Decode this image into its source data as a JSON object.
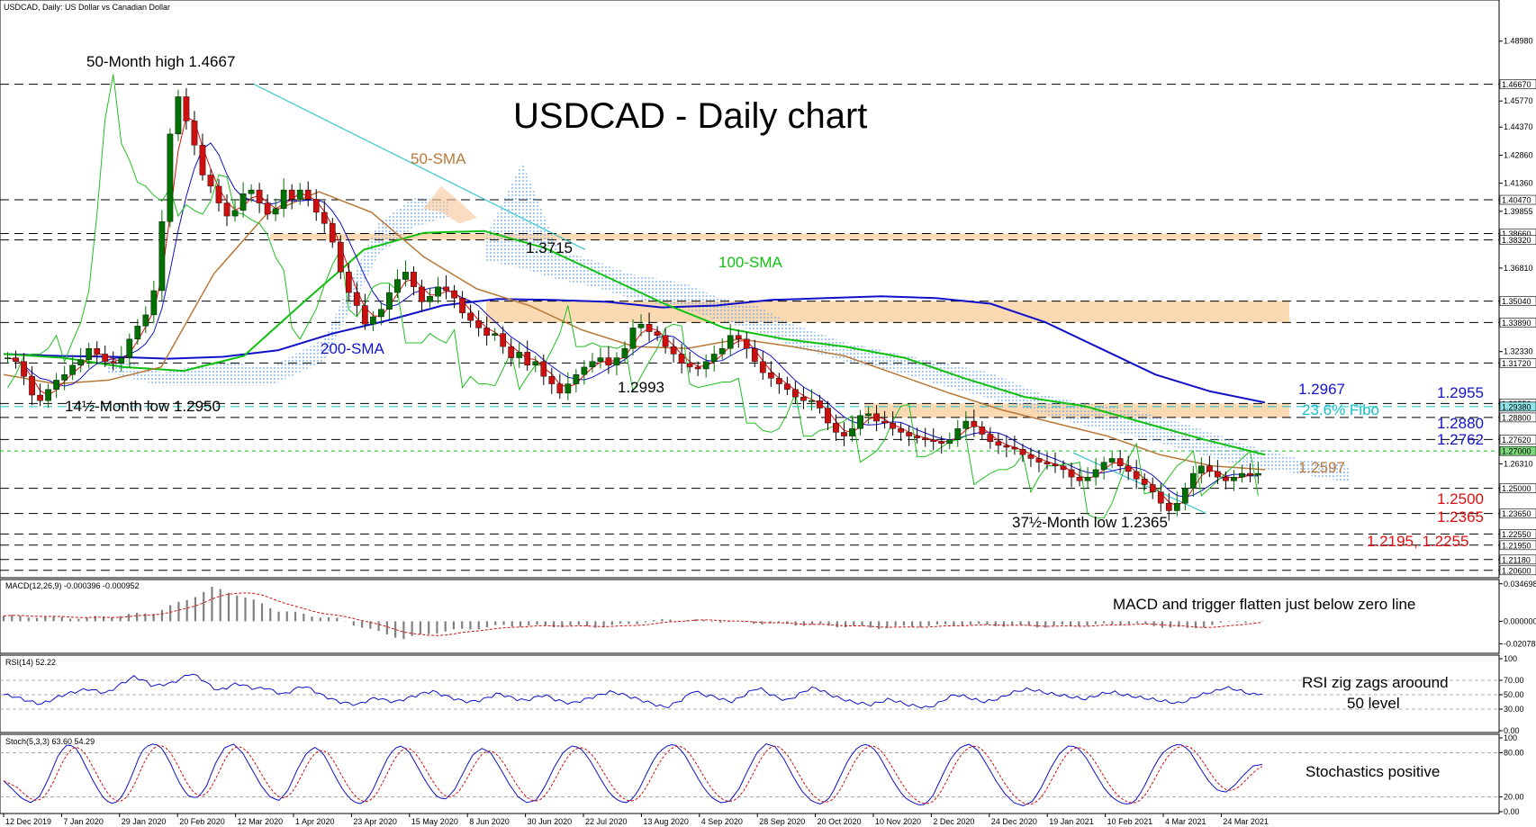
{
  "header": {
    "symbol_line": "USDCAD, Daily:  US Dollar vs Canadian Dollar",
    "title": "USDCAD - Daily chart"
  },
  "chart_data": {
    "type": "candlestick",
    "title": "USDCAD - Daily chart",
    "price_axis": {
      "ylim": [
        1.203,
        1.508
      ],
      "ticks": [
        "1.48980",
        "1.45770",
        "1.44370",
        "1.42860",
        "1.41360",
        "1.39855",
        "1.36810",
        "1.32330",
        "1.26310"
      ]
    },
    "time_axis": {
      "labels": [
        "12 Dec 2019",
        "7 Jan 2020",
        "29 Jan 2020",
        "20 Feb 2020",
        "12 Mar 2020",
        "1 Apr 2020",
        "23 Apr 2020",
        "15 May 2020",
        "8 Jun 2020",
        "30 Jun 2020",
        "22 Jul 2020",
        "13 Aug 2020",
        "4 Sep 2020",
        "28 Sep 2020",
        "20 Oct 2020",
        "10 Nov 2020",
        "2 Dec 2020",
        "24 Dec 2020",
        "19 Jan 2021",
        "10 Feb 2021",
        "4 Mar 2021",
        "24 Mar 2021"
      ]
    },
    "levels": [
      {
        "value": 1.4667,
        "label": "1.46670"
      },
      {
        "value": 1.4047,
        "label": "1.40470"
      },
      {
        "value": 1.3866,
        "label": "1.38660"
      },
      {
        "value": 1.3832,
        "label": "1.38320"
      },
      {
        "value": 1.3504,
        "label": "1.35040"
      },
      {
        "value": 1.3389,
        "label": "1.33890"
      },
      {
        "value": 1.3172,
        "label": "1.31720"
      },
      {
        "value": 1.2955,
        "label": "1.29550"
      },
      {
        "value": 1.2938,
        "label": "1.29380"
      },
      {
        "value": 1.288,
        "label": "1.28800"
      },
      {
        "value": 1.2762,
        "label": "1.27620"
      },
      {
        "value": 1.27,
        "label": "1.27000"
      },
      {
        "value": 1.25,
        "label": "1.25000"
      },
      {
        "value": 1.2365,
        "label": "1.23650"
      },
      {
        "value": 1.2255,
        "label": "1.22550"
      },
      {
        "value": 1.2195,
        "label": "1.21950"
      },
      {
        "value": 1.2118,
        "label": "1.21180"
      },
      {
        "value": 1.206,
        "label": "1.20600"
      }
    ],
    "zones": [
      [
        1.3832,
        1.3866
      ],
      [
        1.3389,
        1.3504
      ],
      [
        1.288,
        1.2955
      ]
    ],
    "close_path": [
      1.32,
      1.318,
      1.31,
      1.3,
      1.297,
      1.303,
      1.308,
      1.311,
      1.316,
      1.319,
      1.325,
      1.322,
      1.318,
      1.317,
      1.32,
      1.33,
      1.337,
      1.343,
      1.356,
      1.393,
      1.44,
      1.46,
      1.447,
      1.434,
      1.418,
      1.412,
      1.403,
      1.396,
      1.399,
      1.408,
      1.41,
      1.403,
      1.397,
      1.4,
      1.41,
      1.405,
      1.41,
      1.405,
      1.398,
      1.392,
      1.382,
      1.366,
      1.355,
      1.348,
      1.338,
      1.342,
      1.346,
      1.355,
      1.362,
      1.366,
      1.358,
      1.35,
      1.353,
      1.358,
      1.356,
      1.352,
      1.344,
      1.34,
      1.336,
      1.332,
      1.333,
      1.326,
      1.32,
      1.323,
      1.316,
      1.318,
      1.31,
      1.306,
      1.301,
      1.306,
      1.311,
      1.315,
      1.318,
      1.32,
      1.316,
      1.32,
      1.325,
      1.336,
      1.338,
      1.334,
      1.332,
      1.326,
      1.322,
      1.317,
      1.315,
      1.314,
      1.318,
      1.322,
      1.325,
      1.332,
      1.33,
      1.325,
      1.318,
      1.312,
      1.309,
      1.306,
      1.303,
      1.299,
      1.297,
      1.297,
      1.293,
      1.285,
      1.28,
      1.278,
      1.282,
      1.289,
      1.29,
      1.286,
      1.285,
      1.282,
      1.28,
      1.278,
      1.277,
      1.276,
      1.275,
      1.274,
      1.276,
      1.282,
      1.286,
      1.283,
      1.279,
      1.275,
      1.273,
      1.272,
      1.271,
      1.268,
      1.266,
      1.264,
      1.263,
      1.262,
      1.26,
      1.256,
      1.254,
      1.256,
      1.26,
      1.264,
      1.266,
      1.262,
      1.259,
      1.255,
      1.252,
      1.248,
      1.242,
      1.238,
      1.242,
      1.25,
      1.258,
      1.262,
      1.259,
      1.256,
      1.254,
      1.256,
      1.258,
      1.257,
      1.258
    ],
    "sma200": [
      1.322,
      1.321,
      1.3205,
      1.3195,
      1.3205,
      1.324,
      1.333,
      1.34,
      1.348,
      1.3515,
      1.351,
      1.35,
      1.347,
      1.348,
      1.351,
      1.352,
      1.353,
      1.352,
      1.349,
      1.339,
      1.325,
      1.311,
      1.302,
      1.296
    ],
    "sma100": [
      1.322,
      1.32,
      1.315,
      1.313,
      1.321,
      1.35,
      1.378,
      1.387,
      1.388,
      1.379,
      1.364,
      1.349,
      1.336,
      1.33,
      1.326,
      1.32,
      1.309,
      1.299,
      1.294,
      1.285,
      1.276,
      1.268
    ],
    "sma50": [
      1.311,
      1.306,
      1.308,
      1.315,
      1.365,
      1.397,
      1.409,
      1.398,
      1.374,
      1.357,
      1.348,
      1.335,
      1.326,
      1.325,
      1.33,
      1.326,
      1.321,
      1.311,
      1.301,
      1.292,
      1.285,
      1.278,
      1.268,
      1.262,
      1.26
    ],
    "macd": {
      "label": "MACD(12,26,9) -0.000396 -0.000952",
      "ticks": [
        "0.034698",
        "0.000000",
        "-0.020785"
      ],
      "ylim": [
        -0.028,
        0.037
      ],
      "anchors": [
        [
          0,
          0.005
        ],
        [
          10,
          0.003
        ],
        [
          18,
          0.008
        ],
        [
          22,
          0.02
        ],
        [
          25,
          0.031
        ],
        [
          28,
          0.025
        ],
        [
          33,
          0.01
        ],
        [
          40,
          0.002
        ],
        [
          45,
          -0.01
        ],
        [
          48,
          -0.016
        ],
        [
          52,
          -0.01
        ],
        [
          60,
          -0.004
        ],
        [
          72,
          -0.005
        ],
        [
          80,
          0.002
        ],
        [
          88,
          -0.001
        ],
        [
          95,
          -0.003
        ],
        [
          105,
          -0.006
        ],
        [
          115,
          -0.003
        ],
        [
          125,
          -0.005
        ],
        [
          135,
          -0.002
        ],
        [
          142,
          -0.007
        ],
        [
          148,
          0.0
        ],
        [
          152,
          -0.001
        ]
      ]
    },
    "rsi": {
      "label": "RSI(14) 52.22",
      "ticks": [
        "100",
        "70.00",
        "50.00",
        "30.00",
        "0.00"
      ],
      "path": [
        50,
        48,
        44,
        40,
        37,
        42,
        48,
        52,
        55,
        58,
        55,
        52,
        60,
        68,
        75,
        70,
        62,
        64,
        66,
        72,
        80,
        74,
        64,
        56,
        60,
        66,
        62,
        58,
        60,
        55,
        50,
        56,
        62,
        58,
        50,
        45,
        40,
        38,
        36,
        42,
        46,
        42,
        40,
        44,
        48,
        52,
        55,
        50,
        46,
        42,
        40,
        42,
        46,
        52,
        48,
        44,
        42,
        46,
        50,
        44,
        40,
        38,
        42,
        46,
        50,
        54,
        52,
        48,
        44,
        40,
        36,
        32,
        38,
        45,
        56,
        50,
        48,
        44,
        40,
        46,
        54,
        60,
        52,
        46,
        42,
        48,
        56,
        60,
        54,
        48,
        44,
        40,
        38,
        36,
        40,
        44,
        40,
        36,
        34,
        32,
        36,
        44,
        50,
        48,
        44,
        40,
        42,
        46,
        52,
        56,
        58,
        55,
        52,
        50,
        48,
        46,
        44,
        48,
        52,
        54,
        50,
        48,
        46,
        44,
        42,
        40,
        38,
        42,
        48,
        52,
        55,
        60,
        58,
        54,
        50,
        52
      ]
    },
    "stoch": {
      "label": "Stoch(5,3,3) 63.60 54.29",
      "ticks": [
        "100",
        "80.00",
        "20.00",
        "0.00"
      ],
      "path": [
        42,
        30,
        18,
        12,
        22,
        48,
        78,
        92,
        85,
        60,
        36,
        16,
        10,
        22,
        50,
        82,
        92,
        90,
        70,
        42,
        22,
        18,
        32,
        64,
        86,
        92,
        80,
        58,
        36,
        20,
        15,
        30,
        58,
        80,
        88,
        75,
        50,
        28,
        14,
        10,
        24,
        52,
        78,
        90,
        84,
        62,
        40,
        22,
        16,
        28,
        52,
        76,
        86,
        80,
        60,
        38,
        20,
        12,
        16,
        36,
        62,
        82,
        90,
        84,
        66,
        44,
        24,
        14,
        12,
        26,
        52,
        76,
        88,
        92,
        80,
        58,
        36,
        20,
        12,
        14,
        30,
        56,
        80,
        92,
        88,
        70,
        46,
        26,
        14,
        10,
        20,
        46,
        72,
        88,
        92,
        82,
        60,
        38,
        20,
        12,
        8,
        18,
        44,
        70,
        86,
        92,
        84,
        64,
        42,
        24,
        12,
        8,
        14,
        34,
        60,
        80,
        90,
        86,
        70,
        48,
        28,
        16,
        10,
        12,
        30,
        56,
        78,
        88,
        92,
        84,
        64,
        44,
        30,
        26,
        36,
        50,
        62,
        64
      ]
    }
  },
  "annotations": {
    "high_50m": "50-Month high 1.4667",
    "low_14m": "14½-Month low 1.2950",
    "p13715": "1.3715",
    "p12993": "1.2993",
    "low_37m": "37½-Month low 1.2365",
    "sma50": "50-SMA",
    "sma100": "100-SMA",
    "sma200": "200-SMA",
    "p12967": "1.2967",
    "p12955": "1.2955",
    "fibo": "23.6% Fibo",
    "p12880": "1.2880",
    "p12762": "1.2762",
    "p12597": "1.2597",
    "p12500": "1.2500",
    "p12365": "1.2365",
    "p_low": "1.2195, 1.2255",
    "macd_note": "MACD and trigger flatten just below zero line",
    "rsi_note1": "RSI zig zags aroound",
    "rsi_note2": "50 level",
    "stoch_note": "Stochastics positive"
  },
  "colors": {
    "candle": "#007000",
    "candle_down": "#cc0000",
    "sma200": "#1010c8",
    "sma100": "#10c010",
    "sma50": "#b87838",
    "zone": "#fad9b3",
    "cloud": "#6ea8e8",
    "fibo": "#18c0c8",
    "level_blue": "#1414c8",
    "level_red": "#e01010",
    "osc_blue": "#1010c8",
    "osc_red": "#d01010"
  }
}
